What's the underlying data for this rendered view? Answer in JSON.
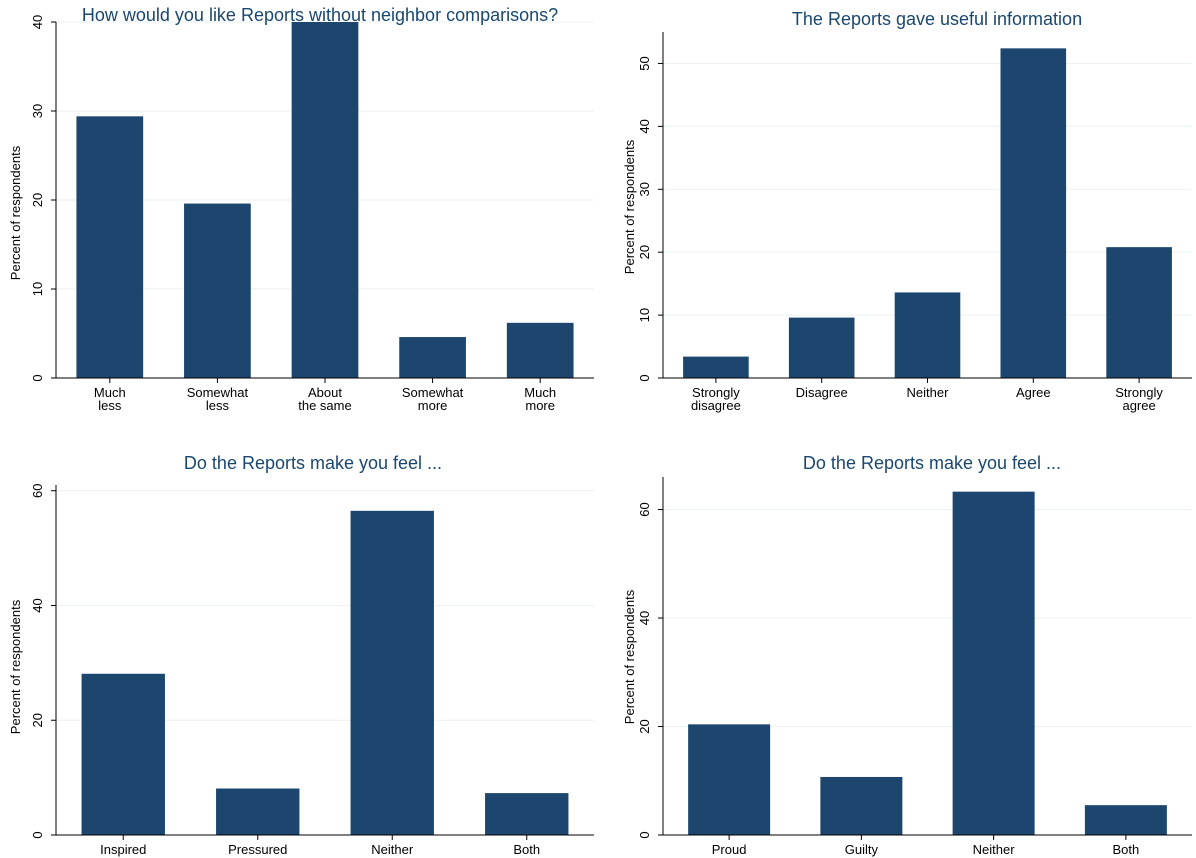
{
  "colors": {
    "bar": "#1c466e",
    "title": "#1a476f",
    "grid": "#eaf2f3",
    "axis": "#000000"
  },
  "chart_data": [
    {
      "type": "bar",
      "title": "How would you like Reports without neighbor comparisons?",
      "ylabel": "Percent of respondents",
      "xlabel": "",
      "categories": [
        [
          "Much",
          "less"
        ],
        [
          "Somewhat",
          "less"
        ],
        [
          "About",
          "the same"
        ],
        [
          "Somewhat",
          "more"
        ],
        [
          "Much",
          "more"
        ]
      ],
      "values": [
        29.4,
        19.6,
        40.0,
        4.6,
        6.2
      ],
      "ylim": [
        0,
        40
      ],
      "yticks": [
        0,
        10,
        20,
        30,
        40
      ],
      "grid": true
    },
    {
      "type": "bar",
      "title": "The Reports gave useful information",
      "ylabel": "Percent of respondents",
      "xlabel": "",
      "categories": [
        [
          "Strongly",
          "disagree"
        ],
        [
          "Disagree"
        ],
        [
          "Neither"
        ],
        [
          "Agree"
        ],
        [
          "Strongly",
          "agree"
        ]
      ],
      "values": [
        3.4,
        9.6,
        13.6,
        52.4,
        20.8
      ],
      "ylim": [
        0,
        55
      ],
      "yticks": [
        0,
        10,
        20,
        30,
        40,
        50
      ],
      "grid": true
    },
    {
      "type": "bar",
      "title": "Do the Reports make you feel ...",
      "ylabel": "Percent of respondents",
      "xlabel": "",
      "categories": [
        [
          "Inspired"
        ],
        [
          "Pressured"
        ],
        [
          "Neither"
        ],
        [
          "Both"
        ]
      ],
      "values": [
        28.1,
        8.1,
        56.5,
        7.3
      ],
      "ylim": [
        0,
        61
      ],
      "yticks": [
        0,
        20,
        40,
        60
      ],
      "grid": true
    },
    {
      "type": "bar",
      "title": "Do the Reports make you feel ...",
      "ylabel": "Percent of respondents",
      "xlabel": "",
      "categories": [
        [
          "Proud"
        ],
        [
          "Guilty"
        ],
        [
          "Neither"
        ],
        [
          "Both"
        ]
      ],
      "values": [
        20.4,
        10.7,
        63.3,
        5.5
      ],
      "ylim": [
        0,
        66
      ],
      "yticks": [
        0,
        20,
        40,
        60
      ],
      "grid": true
    }
  ]
}
